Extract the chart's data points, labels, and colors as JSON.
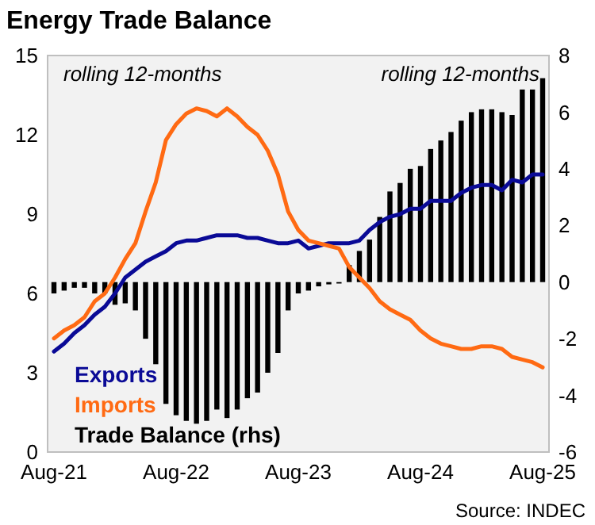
{
  "chart_data": {
    "type": "line",
    "title": "Energy Trade Balance",
    "categories": [
      "Aug-21",
      null,
      null,
      null,
      null,
      null,
      null,
      null,
      null,
      null,
      null,
      null,
      "Aug-22",
      null,
      null,
      null,
      null,
      null,
      null,
      null,
      null,
      null,
      null,
      null,
      "Aug-23",
      null,
      null,
      null,
      null,
      null,
      null,
      null,
      null,
      null,
      null,
      null,
      "Aug-24",
      null,
      null,
      null,
      null,
      null,
      null,
      null,
      null,
      null,
      null,
      null,
      "Aug-25"
    ],
    "series": [
      {
        "name": "Exports",
        "color": "#0a0a96",
        "values": [
          3.8,
          4.1,
          4.5,
          4.8,
          5.2,
          5.5,
          6.0,
          6.6,
          6.9,
          7.2,
          7.4,
          7.6,
          7.9,
          8.0,
          8.0,
          8.1,
          8.2,
          8.2,
          8.2,
          8.1,
          8.1,
          8.0,
          7.9,
          7.9,
          8.0,
          7.7,
          7.8,
          7.9,
          7.9,
          7.9,
          8.0,
          8.4,
          8.7,
          8.9,
          9.0,
          9.2,
          9.2,
          9.5,
          9.5,
          9.5,
          9.8,
          10.0,
          10.1,
          10.1,
          9.9,
          10.3,
          10.2,
          10.5,
          10.5
        ]
      },
      {
        "name": "Imports",
        "color": "#ff6a13",
        "values": [
          4.3,
          4.6,
          4.8,
          5.1,
          5.7,
          6.0,
          6.6,
          7.3,
          7.9,
          9.1,
          10.2,
          11.8,
          12.4,
          12.8,
          13.0,
          12.9,
          12.7,
          13.0,
          12.7,
          12.3,
          12.0,
          11.4,
          10.5,
          9.1,
          8.4,
          8.0,
          7.9,
          7.8,
          7.7,
          7.0,
          6.6,
          6.2,
          5.7,
          5.4,
          5.2,
          5.0,
          4.6,
          4.3,
          4.1,
          4.0,
          3.9,
          3.9,
          4.0,
          4.0,
          3.9,
          3.6,
          3.5,
          3.4,
          3.2
        ]
      },
      {
        "name": "Trade Balance (rhs)",
        "type": "bar",
        "axis": "y2",
        "color": "#000000",
        "values": [
          -0.4,
          -0.3,
          -0.2,
          -0.2,
          -0.4,
          -0.4,
          -0.8,
          -0.75,
          -1.0,
          -2.0,
          -2.9,
          -4.3,
          -4.7,
          -4.9,
          -5.0,
          -4.9,
          -4.5,
          -4.8,
          -4.5,
          -4.1,
          -3.9,
          -3.2,
          -2.5,
          -1.0,
          -0.4,
          -0.3,
          -0.15,
          -0.08,
          -0.05,
          0.6,
          1.1,
          1.5,
          2.3,
          3.2,
          3.5,
          4.0,
          4.1,
          4.7,
          5.0,
          5.3,
          5.7,
          6.0,
          6.1,
          6.1,
          6.0,
          5.9,
          6.8,
          6.8,
          7.2
        ]
      }
    ],
    "ylim": [
      0,
      15
    ],
    "yticks": [
      0,
      3,
      6,
      9,
      12,
      15
    ],
    "y2lim": [
      -6,
      8
    ],
    "y2ticks": [
      -6,
      -4,
      -2,
      0,
      2,
      4,
      6,
      8
    ],
    "legend": "bottom left",
    "annotations": [
      "rolling 12-months",
      "rolling 12-months",
      "Source: INDEC"
    ]
  }
}
